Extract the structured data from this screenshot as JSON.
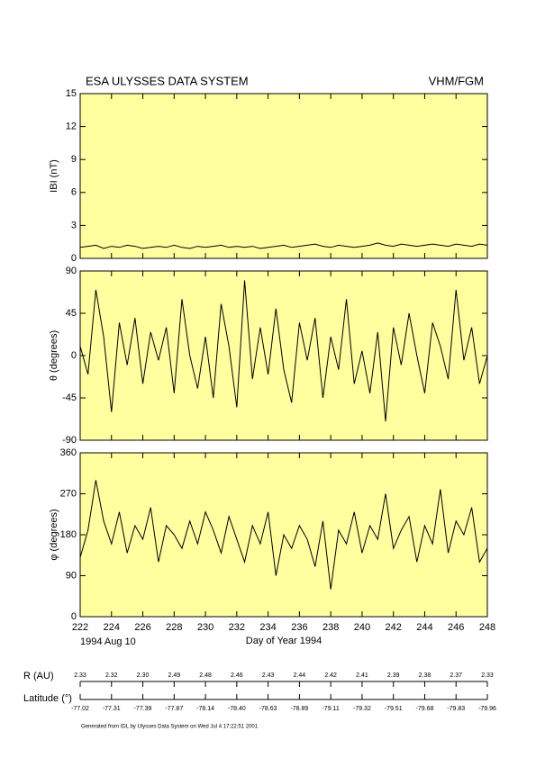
{
  "header": {
    "title": "ESA ULYSSES DATA SYSTEM",
    "instrument": "VHM/FGM"
  },
  "chart_data": [
    {
      "type": "line",
      "ylabel": "IBI (nT)",
      "ylim": [
        0,
        15
      ],
      "yticks": [
        0,
        3,
        6,
        9,
        12,
        15
      ],
      "xlim": [
        222,
        248
      ],
      "xticks": [
        222,
        224,
        226,
        228,
        230,
        232,
        234,
        236,
        238,
        240,
        242,
        244,
        246,
        248
      ],
      "color": "#000000",
      "background": "#ffffa0",
      "x": [
        222,
        222.5,
        223,
        223.5,
        224,
        224.5,
        225,
        225.5,
        226,
        226.5,
        227,
        227.5,
        228,
        228.5,
        229,
        229.5,
        230,
        230.5,
        231,
        231.5,
        232,
        232.5,
        233,
        233.5,
        234,
        234.5,
        235,
        235.5,
        236,
        236.5,
        237,
        237.5,
        238,
        238.5,
        239,
        239.5,
        240,
        240.5,
        241,
        241.5,
        242,
        242.5,
        243,
        243.5,
        244,
        244.5,
        245,
        245.5,
        246,
        246.5,
        247,
        247.5,
        248
      ],
      "values": [
        1.0,
        1.1,
        1.2,
        0.9,
        1.1,
        1.0,
        1.2,
        1.1,
        0.9,
        1.0,
        1.1,
        1.0,
        1.2,
        1.0,
        0.9,
        1.1,
        1.0,
        1.1,
        1.2,
        1.0,
        1.1,
        1.0,
        1.1,
        0.9,
        1.0,
        1.1,
        1.2,
        1.0,
        1.1,
        1.2,
        1.3,
        1.1,
        1.0,
        1.2,
        1.1,
        1.0,
        1.1,
        1.2,
        1.4,
        1.2,
        1.1,
        1.3,
        1.2,
        1.1,
        1.2,
        1.3,
        1.2,
        1.1,
        1.3,
        1.2,
        1.1,
        1.3,
        1.2
      ]
    },
    {
      "type": "line",
      "ylabel": "θ (degrees)",
      "ylim": [
        -90,
        90
      ],
      "yticks": [
        -90,
        -45,
        0,
        45,
        90
      ],
      "xlim": [
        222,
        248
      ],
      "xticks": [
        222,
        224,
        226,
        228,
        230,
        232,
        234,
        236,
        238,
        240,
        242,
        244,
        246,
        248
      ],
      "color": "#000000",
      "background": "#ffffa0",
      "x": [
        222,
        222.5,
        223,
        223.5,
        224,
        224.5,
        225,
        225.5,
        226,
        226.5,
        227,
        227.5,
        228,
        228.5,
        229,
        229.5,
        230,
        230.5,
        231,
        231.5,
        232,
        232.5,
        233,
        233.5,
        234,
        234.5,
        235,
        235.5,
        236,
        236.5,
        237,
        237.5,
        238,
        238.5,
        239,
        239.5,
        240,
        240.5,
        241,
        241.5,
        242,
        242.5,
        243,
        243.5,
        244,
        244.5,
        245,
        245.5,
        246,
        246.5,
        247,
        247.5,
        248
      ],
      "values": [
        10,
        -20,
        70,
        20,
        -60,
        35,
        -10,
        40,
        -30,
        25,
        -5,
        30,
        -40,
        60,
        0,
        -35,
        20,
        -45,
        55,
        10,
        -55,
        80,
        -25,
        30,
        -20,
        50,
        -15,
        -50,
        35,
        -5,
        40,
        -45,
        20,
        -15,
        60,
        -30,
        5,
        -40,
        25,
        -70,
        30,
        -10,
        45,
        0,
        -40,
        35,
        10,
        -25,
        70,
        -5,
        30,
        -30,
        0
      ]
    },
    {
      "type": "line",
      "ylabel": "φ (degrees)",
      "xlabel": "Day of Year 1994",
      "date_label": "1994 Aug 10",
      "ylim": [
        0,
        360
      ],
      "yticks": [
        0,
        90,
        180,
        270,
        360
      ],
      "xlim": [
        222,
        248
      ],
      "xticks": [
        222,
        224,
        226,
        228,
        230,
        232,
        234,
        236,
        238,
        240,
        242,
        244,
        246,
        248
      ],
      "color": "#000000",
      "background": "#ffffa0",
      "x": [
        222,
        222.5,
        223,
        223.5,
        224,
        224.5,
        225,
        225.5,
        226,
        226.5,
        227,
        227.5,
        228,
        228.5,
        229,
        229.5,
        230,
        230.5,
        231,
        231.5,
        232,
        232.5,
        233,
        233.5,
        234,
        234.5,
        235,
        235.5,
        236,
        236.5,
        237,
        237.5,
        238,
        238.5,
        239,
        239.5,
        240,
        240.5,
        241,
        241.5,
        242,
        242.5,
        243,
        243.5,
        244,
        244.5,
        245,
        245.5,
        246,
        246.5,
        247,
        247.5,
        248
      ],
      "values": [
        130,
        190,
        300,
        210,
        160,
        230,
        140,
        200,
        170,
        240,
        120,
        200,
        180,
        150,
        210,
        160,
        230,
        190,
        140,
        220,
        170,
        120,
        200,
        160,
        230,
        90,
        180,
        150,
        200,
        170,
        110,
        210,
        60,
        190,
        160,
        230,
        140,
        200,
        170,
        270,
        150,
        190,
        220,
        120,
        200,
        160,
        280,
        140,
        210,
        180,
        240,
        120,
        150
      ]
    }
  ],
  "orbit": {
    "r_label": "R (AU)",
    "r_values": [
      "2.33",
      "2.32",
      "2.30",
      "2.49",
      "2.48",
      "2.46",
      "2.43",
      "2.44",
      "2.42",
      "2.41",
      "2.39",
      "2.38",
      "2.37",
      "2.33"
    ],
    "lat_label": "Latitude (°)",
    "lat_values": [
      "-77.02",
      "-77.31",
      "-77.39",
      "-77.87",
      "-78.14",
      "-78.40",
      "-78.63",
      "-78.89",
      "-79.11",
      "-79.32",
      "-79.51",
      "-79.68",
      "-79.83",
      "-79.96"
    ]
  },
  "footer": "Generated from IDL by Ulysses Data System on Wed Jul  4 17:22:51 2001"
}
